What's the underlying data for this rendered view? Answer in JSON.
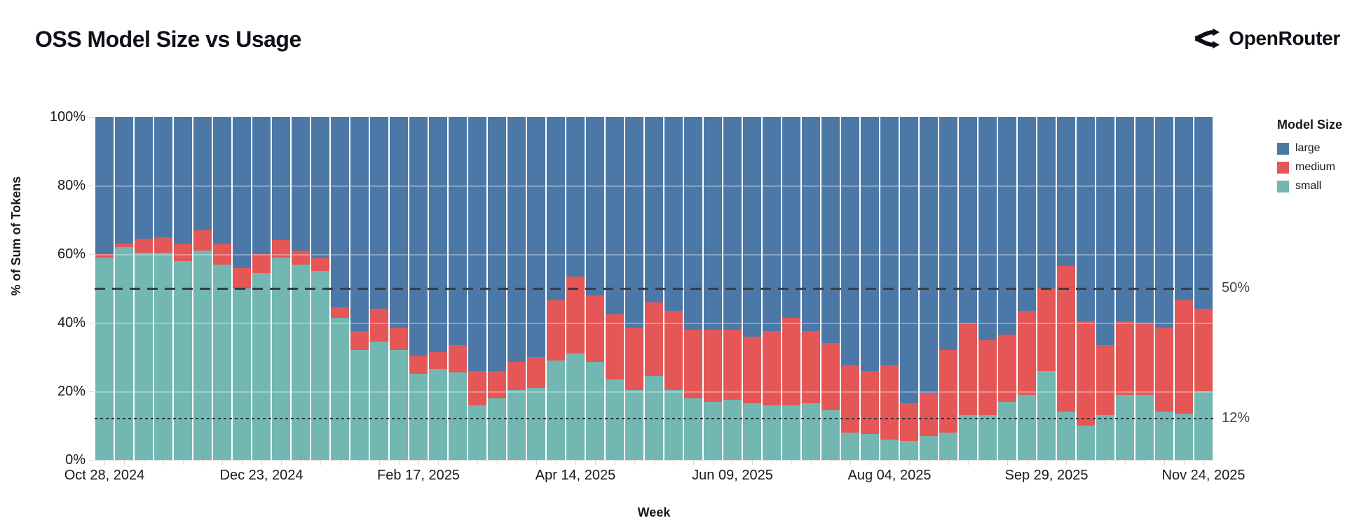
{
  "header": {
    "title": "OSS Model Size vs Usage",
    "brand": "OpenRouter"
  },
  "annotations": {
    "line50": "50%",
    "line12": "12%"
  },
  "legend": {
    "title": "Model Size",
    "entries": [
      "large",
      "medium",
      "small"
    ]
  },
  "chart_data": {
    "type": "bar",
    "stacked": true,
    "title": "OSS Model Size vs Usage",
    "xlabel": "Week",
    "ylabel": "% of Sum of Tokens",
    "ylim": [
      0,
      100
    ],
    "y_ticks": [
      "0%",
      "20%",
      "40%",
      "60%",
      "80%",
      "100%"
    ],
    "y_gridlines": [
      20,
      40,
      60,
      80
    ],
    "legend_position": "right",
    "x_tick_indices": [
      0,
      8,
      16,
      24,
      32,
      40,
      48,
      56
    ],
    "x_tick_labels": [
      "Oct 28, 2024",
      "Dec 23, 2024",
      "Feb 17, 2025",
      "Apr 14, 2025",
      "Jun 09, 2025",
      "Aug 04, 2025",
      "Sep 29, 2025",
      "Nov 24, 2025"
    ],
    "weeks": [
      "Oct 28, 2024",
      "Nov 04, 2024",
      "Nov 11, 2024",
      "Nov 18, 2024",
      "Nov 25, 2024",
      "Dec 02, 2024",
      "Dec 09, 2024",
      "Dec 16, 2024",
      "Dec 23, 2024",
      "Dec 30, 2024",
      "Jan 06, 2025",
      "Jan 13, 2025",
      "Jan 20, 2025",
      "Jan 27, 2025",
      "Feb 03, 2025",
      "Feb 10, 2025",
      "Feb 17, 2025",
      "Feb 24, 2025",
      "Mar 03, 2025",
      "Mar 10, 2025",
      "Mar 17, 2025",
      "Mar 24, 2025",
      "Mar 31, 2025",
      "Apr 07, 2025",
      "Apr 14, 2025",
      "Apr 21, 2025",
      "Apr 28, 2025",
      "May 05, 2025",
      "May 12, 2025",
      "May 19, 2025",
      "May 26, 2025",
      "Jun 02, 2025",
      "Jun 09, 2025",
      "Jun 16, 2025",
      "Jun 23, 2025",
      "Jun 30, 2025",
      "Jul 07, 2025",
      "Jul 14, 2025",
      "Jul 21, 2025",
      "Jul 28, 2025",
      "Aug 04, 2025",
      "Aug 11, 2025",
      "Aug 18, 2025",
      "Aug 25, 2025",
      "Sep 01, 2025",
      "Sep 08, 2025",
      "Sep 15, 2025",
      "Sep 22, 2025",
      "Sep 29, 2025",
      "Oct 06, 2025",
      "Oct 13, 2025",
      "Oct 20, 2025",
      "Oct 27, 2025",
      "Nov 03, 2025",
      "Nov 10, 2025",
      "Nov 17, 2025",
      "Nov 24, 2025"
    ],
    "series": [
      {
        "name": "large",
        "color": "#4c78a8",
        "values": [
          40,
          37,
          35.5,
          35,
          37,
          33,
          37,
          44,
          40,
          36,
          39,
          41,
          55.5,
          62.5,
          56,
          61.5,
          69.5,
          68.5,
          66.5,
          74,
          74,
          71.5,
          70,
          53.5,
          46.5,
          52,
          57.5,
          61.5,
          54,
          56.5,
          62,
          62,
          62,
          64,
          62.5,
          58.5,
          62.5,
          66,
          72.5,
          74,
          72.5,
          83.5,
          80.5,
          68,
          60.5,
          65,
          63.5,
          56.5,
          50,
          43.5,
          59.5,
          66.5,
          59.5,
          60,
          61.5,
          53.5,
          56
        ]
      },
      {
        "name": "medium",
        "color": "#e45756",
        "values": [
          1,
          1,
          4,
          4.5,
          5,
          6,
          6,
          6,
          5.5,
          5,
          4,
          4,
          3,
          5.5,
          9.5,
          6.5,
          5.5,
          5,
          8,
          10,
          8,
          8,
          9,
          17.5,
          22.5,
          19.5,
          19,
          18,
          21.5,
          23,
          20,
          21,
          20.5,
          19.5,
          21.5,
          25.5,
          21,
          19.5,
          19.5,
          18.5,
          21.5,
          11,
          12.5,
          24,
          26.5,
          22,
          19.5,
          24.5,
          24,
          42.5,
          30.5,
          20.5,
          21.5,
          21,
          24.5,
          33,
          24
        ]
      },
      {
        "name": "small",
        "color": "#72b7b2",
        "values": [
          59,
          62,
          60.5,
          60.5,
          58,
          61,
          57,
          50,
          54.5,
          59,
          57,
          55,
          41.5,
          32,
          34.5,
          32,
          25,
          26.5,
          25.5,
          16,
          18,
          20.5,
          21,
          29,
          31,
          28.5,
          23.5,
          20.5,
          24.5,
          20.5,
          18,
          17,
          17.5,
          16.5,
          16,
          16,
          16.5,
          14.5,
          8,
          7.5,
          6,
          5.5,
          7,
          8,
          13,
          13,
          17,
          19,
          26,
          14,
          10,
          13,
          19,
          19,
          14,
          13.5,
          20
        ]
      }
    ],
    "reference_lines": [
      {
        "value": 50,
        "label": "50%",
        "style": "dashed"
      },
      {
        "value": 12,
        "label": "12%",
        "style": "dotted"
      }
    ],
    "legend": {
      "title": "Model Size",
      "entries": [
        "large",
        "medium",
        "small"
      ]
    }
  }
}
